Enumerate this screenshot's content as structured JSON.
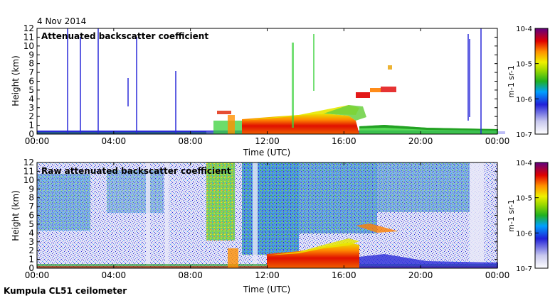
{
  "date": "4 Nov 2014",
  "footer": "Kumpula CL51 ceilometer",
  "colors": {
    "ramp": [
      "#ffffff",
      "#d8d8f0",
      "#2a2ad8",
      "#1e9a1e",
      "#3ad23a",
      "#e8e800",
      "#ff9a00",
      "#e00000",
      "#800000"
    ],
    "frame": "#000000"
  },
  "chart_data": [
    {
      "type": "heatmap",
      "title": "Attenuated backscatter coefficient",
      "xlabel": "Time (UTC)",
      "ylabel": "Height (km)",
      "xlim": [
        0,
        24
      ],
      "ylim": [
        0,
        12
      ],
      "x_ticks": [
        "00:00",
        "04:00",
        "08:00",
        "12:00",
        "16:00",
        "20:00",
        "00:00"
      ],
      "y_ticks": [
        "0",
        "1",
        "2",
        "3",
        "4",
        "5",
        "6",
        "7",
        "8",
        "9",
        "10",
        "11",
        "12"
      ],
      "colorbar": {
        "labels": [
          "10-7",
          "10-6",
          "10-5",
          "10-4"
        ],
        "unit": "m-1 sr-1"
      }
    },
    {
      "type": "heatmap",
      "title": "Raw attenuated backscatter coefficient",
      "xlabel": "Time (UTC)",
      "ylabel": "Height (km)",
      "xlim": [
        0,
        24
      ],
      "ylim": [
        0,
        12
      ],
      "x_ticks": [
        "00:00",
        "04:00",
        "08:00",
        "12:00",
        "16:00",
        "20:00",
        "00:00"
      ],
      "y_ticks": [
        "0",
        "1",
        "2",
        "3",
        "4",
        "5",
        "6",
        "7",
        "8",
        "9",
        "10",
        "11",
        "12"
      ],
      "colorbar": {
        "labels": [
          "10-7",
          "10-6",
          "10-5",
          "10-4"
        ],
        "unit": "m-1 sr-1"
      }
    }
  ]
}
